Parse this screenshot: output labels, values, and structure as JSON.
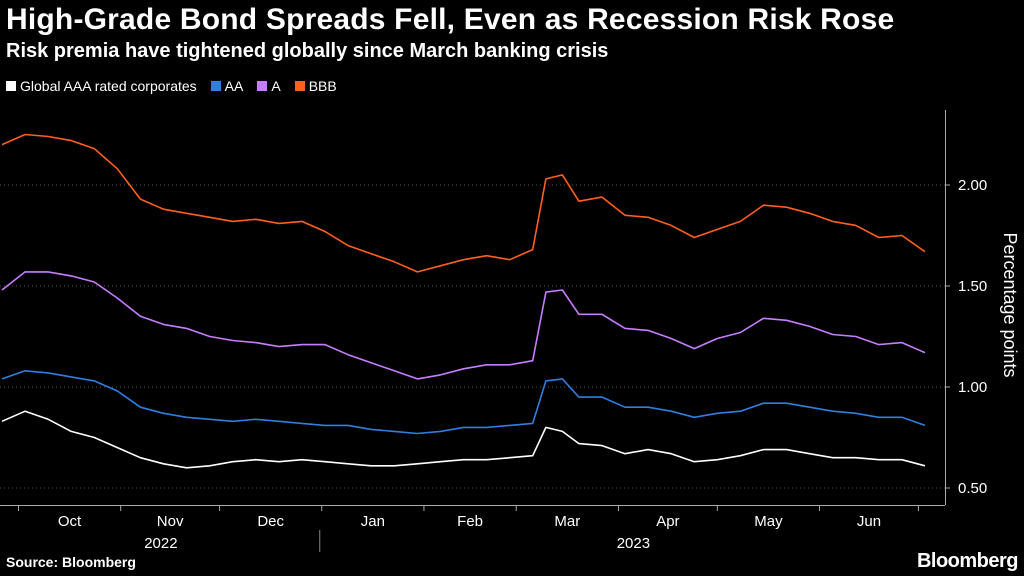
{
  "header": {
    "title": "High-Grade Bond Spreads Fell, Even as Recession Risk Rose",
    "subtitle": "Risk premia have tightened globally since March banking crisis"
  },
  "footer": {
    "source": "Source: Bloomberg",
    "brand": "Bloomberg"
  },
  "chart_data": {
    "type": "line",
    "title": "High-Grade Bond Spreads Fell, Even as Recession Risk Rose",
    "subtitle": "Risk premia have tightened globally since March banking crisis",
    "ylabel": "Percentage points",
    "ylim": [
      0.5,
      2.5
    ],
    "yticks": [
      "0.50",
      "1.00",
      "1.50",
      "2.00"
    ],
    "ytick_values": [
      0.5,
      1.0,
      1.5,
      2.0
    ],
    "x_month_labels": [
      "Oct",
      "Nov",
      "Dec",
      "Jan",
      "Feb",
      "Mar",
      "Apr",
      "May",
      "Jun"
    ],
    "x_year_labels": [
      "2022",
      "2023"
    ],
    "grid": "horizontal dotted",
    "legend_position": "top-left",
    "x": [
      "2022-09-26",
      "2022-10-03",
      "2022-10-10",
      "2022-10-17",
      "2022-10-24",
      "2022-10-31",
      "2022-11-07",
      "2022-11-14",
      "2022-11-21",
      "2022-11-28",
      "2022-12-05",
      "2022-12-12",
      "2022-12-19",
      "2022-12-26",
      "2023-01-02",
      "2023-01-09",
      "2023-01-16",
      "2023-01-23",
      "2023-01-30",
      "2023-02-06",
      "2023-02-13",
      "2023-02-20",
      "2023-02-27",
      "2023-03-06",
      "2023-03-10",
      "2023-03-15",
      "2023-03-20",
      "2023-03-27",
      "2023-04-03",
      "2023-04-10",
      "2023-04-17",
      "2023-04-24",
      "2023-05-01",
      "2023-05-08",
      "2023-05-15",
      "2023-05-22",
      "2023-05-29",
      "2023-06-05",
      "2023-06-12",
      "2023-06-19",
      "2023-06-26",
      "2023-07-03"
    ],
    "series": [
      {
        "name": "BBB",
        "color": "#ff5f1f",
        "values": [
          2.2,
          2.25,
          2.24,
          2.22,
          2.18,
          2.08,
          1.93,
          1.88,
          1.86,
          1.84,
          1.82,
          1.83,
          1.81,
          1.82,
          1.77,
          1.7,
          1.66,
          1.62,
          1.57,
          1.6,
          1.63,
          1.65,
          1.63,
          1.68,
          2.03,
          2.05,
          1.92,
          1.94,
          1.85,
          1.84,
          1.8,
          1.74,
          1.78,
          1.82,
          1.9,
          1.89,
          1.86,
          1.82,
          1.8,
          1.74,
          1.75,
          1.67
        ]
      },
      {
        "name": "A",
        "color": "#c77dff",
        "values": [
          1.48,
          1.57,
          1.57,
          1.55,
          1.52,
          1.44,
          1.35,
          1.31,
          1.29,
          1.25,
          1.23,
          1.22,
          1.2,
          1.21,
          1.21,
          1.16,
          1.12,
          1.08,
          1.04,
          1.06,
          1.09,
          1.11,
          1.11,
          1.13,
          1.47,
          1.48,
          1.36,
          1.36,
          1.29,
          1.28,
          1.24,
          1.19,
          1.24,
          1.27,
          1.34,
          1.33,
          1.3,
          1.26,
          1.25,
          1.21,
          1.22,
          1.17
        ]
      },
      {
        "name": "AA",
        "color": "#2f7fe0",
        "values": [
          1.04,
          1.08,
          1.07,
          1.05,
          1.03,
          0.98,
          0.9,
          0.87,
          0.85,
          0.84,
          0.83,
          0.84,
          0.83,
          0.82,
          0.81,
          0.81,
          0.79,
          0.78,
          0.77,
          0.78,
          0.8,
          0.8,
          0.81,
          0.82,
          1.03,
          1.04,
          0.95,
          0.95,
          0.9,
          0.9,
          0.88,
          0.85,
          0.87,
          0.88,
          0.92,
          0.92,
          0.9,
          0.88,
          0.87,
          0.85,
          0.85,
          0.81
        ]
      },
      {
        "name": "Global AAA rated corporates",
        "color": "#ffffff",
        "values": [
          0.83,
          0.88,
          0.84,
          0.78,
          0.75,
          0.7,
          0.65,
          0.62,
          0.6,
          0.61,
          0.63,
          0.64,
          0.63,
          0.64,
          0.63,
          0.62,
          0.61,
          0.61,
          0.62,
          0.63,
          0.64,
          0.64,
          0.65,
          0.66,
          0.8,
          0.78,
          0.72,
          0.71,
          0.67,
          0.69,
          0.67,
          0.63,
          0.64,
          0.66,
          0.69,
          0.69,
          0.67,
          0.65,
          0.65,
          0.64,
          0.64,
          0.61
        ]
      }
    ]
  }
}
